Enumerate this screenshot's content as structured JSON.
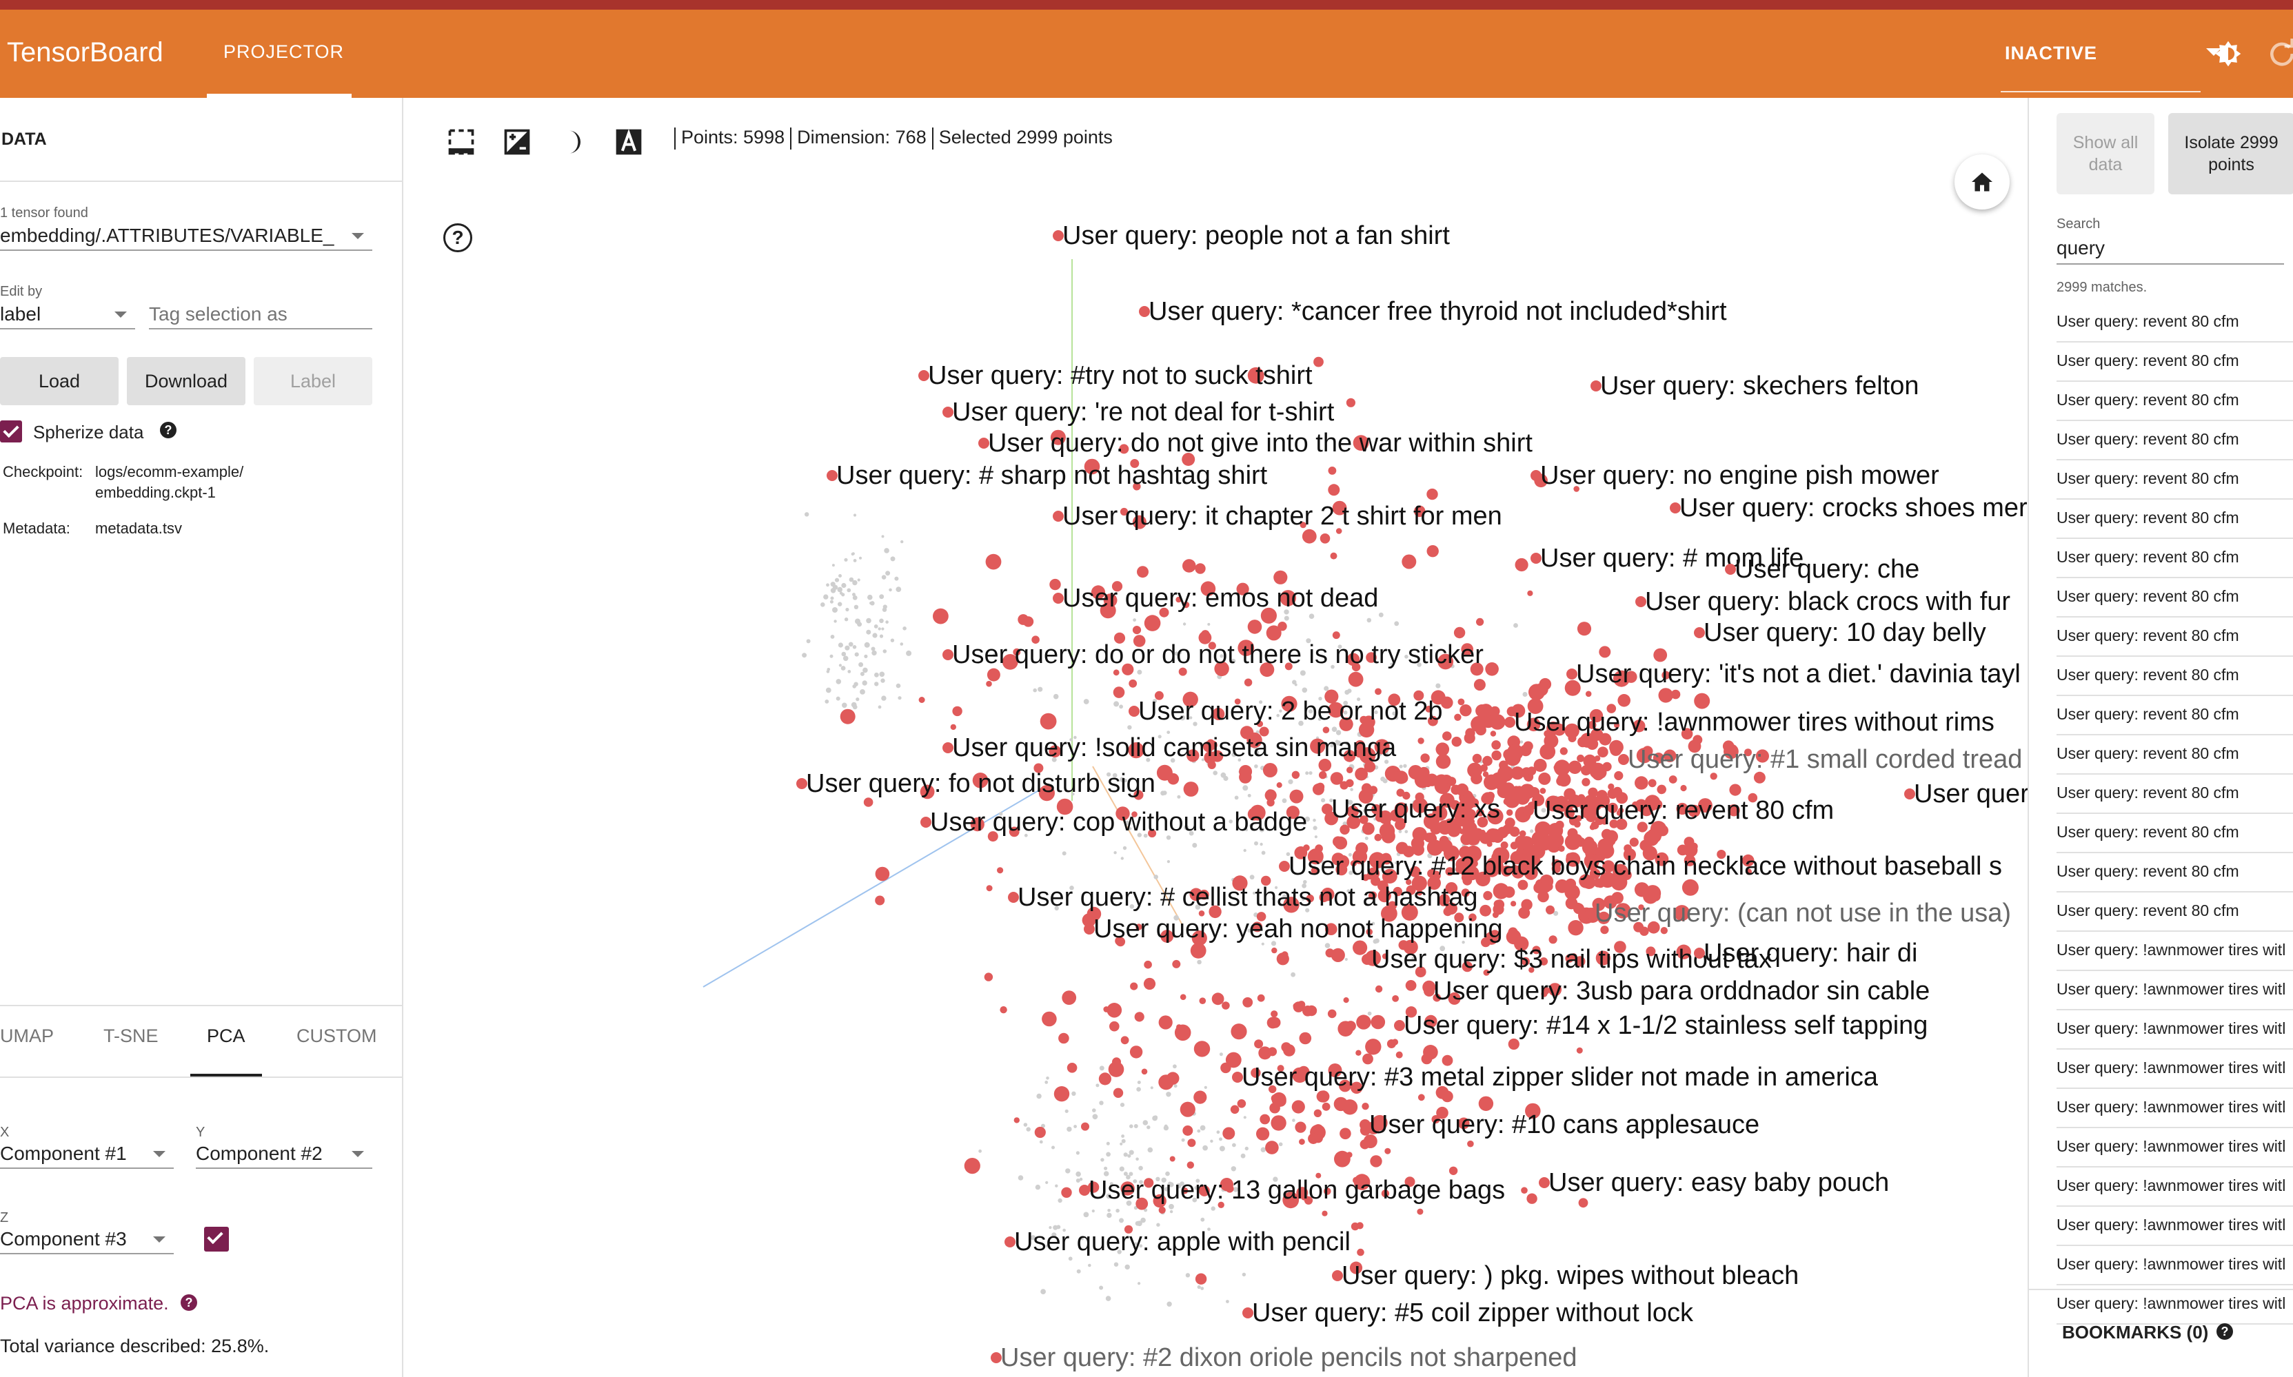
{
  "app": {
    "title": "TensorBoard",
    "tab_projector": "PROJECTOR",
    "run_selector": "INACTIVE"
  },
  "data_panel": {
    "title": "DATA",
    "tensor_found_label": "1 tensor found",
    "tensor_value": "embedding/.ATTRIBUTES/VARIABLE_",
    "edit_by_label": "Edit by",
    "edit_by_value": "label",
    "tag_placeholder": "Tag selection as",
    "load_label": "Load",
    "download_label": "Download",
    "label_button": "Label",
    "sphereize_label": "Spherize data",
    "checkpoint_key": "Checkpoint:",
    "checkpoint_value_1": "logs/ecomm-example/",
    "checkpoint_value_2": "embedding.ckpt-1",
    "metadata_key": "Metadata:",
    "metadata_value": "metadata.tsv"
  },
  "projection": {
    "tabs": [
      "UMAP",
      "T-SNE",
      "PCA",
      "CUSTOM"
    ],
    "active_tab": "PCA",
    "x_label": "X",
    "x_value": "Component #1",
    "y_label": "Y",
    "y_value": "Component #2",
    "z_label": "Z",
    "z_value": "Component #3",
    "pca_warning": "PCA is approximate.",
    "variance": "Total variance described: 25.8%."
  },
  "toolbar": {
    "points": "Points: 5998",
    "dimension": "Dimension: 768",
    "selected": "Selected 2999 points"
  },
  "labels": [
    {
      "text": "User query: people not a fan shirt",
      "dim": false
    },
    {
      "text": "User query: *cancer free thyroid not included*shirt",
      "dim": false
    },
    {
      "text": "User query: #try not to suck tshirt",
      "dim": false
    },
    {
      "text": "User query: skechers felton",
      "dim": false
    },
    {
      "text": "User query: 're not deal for t-shirt",
      "dim": false
    },
    {
      "text": "User query: do not give into the war within shirt",
      "dim": false
    },
    {
      "text": "User query: # sharp not hashtag shirt",
      "dim": false
    },
    {
      "text": "User query: no engine pish mower",
      "dim": false
    },
    {
      "text": "User query: crocks shoes mer",
      "dim": false
    },
    {
      "text": "User query: it chapter 2 t shirt for men",
      "dim": false
    },
    {
      "text": "User query: # mom life",
      "dim": false
    },
    {
      "text": "User query: che",
      "dim": false
    },
    {
      "text": "User query: emos not dead",
      "dim": false
    },
    {
      "text": "User query: black crocs with fur",
      "dim": false
    },
    {
      "text": "User query: 10 day belly",
      "dim": false
    },
    {
      "text": "User query: do or do not there is no try sticker",
      "dim": false
    },
    {
      "text": "User query: 'it's not a diet.' davinia tayl",
      "dim": false
    },
    {
      "text": "User query: 2 be or not 2b",
      "dim": false
    },
    {
      "text": "User query: !awnmower tires without rims",
      "dim": false
    },
    {
      "text": "User query: #1 small corded tread",
      "dim": true
    },
    {
      "text": "User query: !solid camiseta sin manga",
      "dim": false
    },
    {
      "text": "User query: fo not disturb sign",
      "dim": false
    },
    {
      "text": "User quer",
      "dim": false
    },
    {
      "text": "User query: xs",
      "dim": false
    },
    {
      "text": "User query:  revent 80 cfm",
      "dim": false
    },
    {
      "text": "User query: cop without a badge",
      "dim": false
    },
    {
      "text": "User query: #12 black boys chain necklace without baseball s",
      "dim": false
    },
    {
      "text": "User query: # cellist thats not a hashtag",
      "dim": false
    },
    {
      "text": "User query: (can not use in the usa)",
      "dim": true
    },
    {
      "text": "User query: yeah no not happening",
      "dim": false
    },
    {
      "text": "User query: $3 nail tips without tax",
      "dim": false
    },
    {
      "text": "User query: hair di",
      "dim": false
    },
    {
      "text": "User query: 3usb para orddnador sin cable",
      "dim": false
    },
    {
      "text": "User query: #14 x 1-1/2 stainless self tapping",
      "dim": false
    },
    {
      "text": "User query: #3 metal zipper slider not made in america",
      "dim": false
    },
    {
      "text": "User query: #10 cans applesauce",
      "dim": false
    },
    {
      "text": "User query: 13 gallon garbage bags",
      "dim": false
    },
    {
      "text": "User query: easy baby pouch",
      "dim": false
    },
    {
      "text": "User query: apple with pencil",
      "dim": false
    },
    {
      "text": "User query: ) pkg. wipes without bleach",
      "dim": false
    },
    {
      "text": "User query: #5 coil zipper without lock",
      "dim": false
    },
    {
      "text": "User query: #2 dixon oriole pencils not sharpened",
      "dim": true
    }
  ],
  "inspector": {
    "show_all_1": "Show all",
    "show_all_2": "data",
    "isolate_1": "Isolate 2999",
    "isolate_2": "points",
    "search_label": "Search",
    "search_value": "query",
    "matches": "2999 matches.",
    "results": [
      "User query: revent 80 cfm",
      "User query: revent 80 cfm",
      "User query: revent 80 cfm",
      "User query: revent 80 cfm",
      "User query: revent 80 cfm",
      "User query: revent 80 cfm",
      "User query: revent 80 cfm",
      "User query: revent 80 cfm",
      "User query: revent 80 cfm",
      "User query: revent 80 cfm",
      "User query: revent 80 cfm",
      "User query: revent 80 cfm",
      "User query: revent 80 cfm",
      "User query: revent 80 cfm",
      "User query: revent 80 cfm",
      "User query: revent 80 cfm",
      "User query: !awnmower tires witl",
      "User query: !awnmower tires witl",
      "User query: !awnmower tires witl",
      "User query: !awnmower tires witl",
      "User query: !awnmower tires witl",
      "User query: !awnmower tires witl",
      "User query: !awnmower tires witl",
      "User query: !awnmower tires witl",
      "User query: !awnmower tires witl",
      "User query: !awnmower tires witl"
    ],
    "bookmarks": "BOOKMARKS (0)"
  },
  "colors": {
    "header": "#e1782e",
    "accent": "#7b1f4f",
    "point": "#e05a5a"
  }
}
